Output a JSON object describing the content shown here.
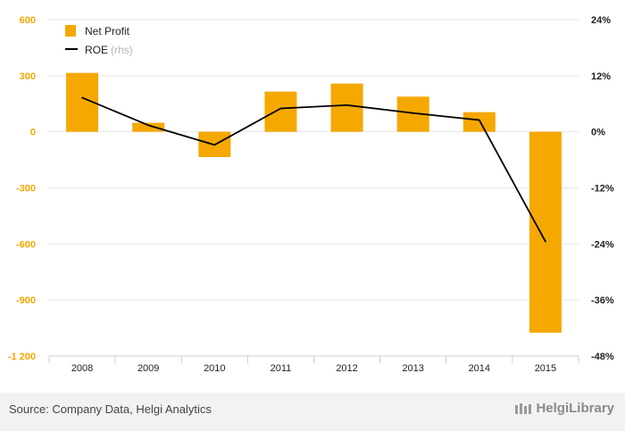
{
  "chart_data": {
    "type": "bar",
    "categories": [
      "2008",
      "2009",
      "2010",
      "2011",
      "2012",
      "2013",
      "2014",
      "2015"
    ],
    "series": [
      {
        "name": "Net Profit",
        "type": "bar",
        "axis": "left",
        "color": "#f5a800",
        "values": [
          315,
          48,
          -135,
          215,
          258,
          188,
          105,
          -1075
        ]
      },
      {
        "name": "ROE",
        "name_suffix": "(rhs)",
        "type": "line",
        "axis": "right",
        "color": "#000000",
        "values": [
          7.3,
          1.4,
          -2.8,
          5.0,
          5.7,
          4.0,
          2.5,
          -23.5
        ]
      }
    ],
    "left_axis": {
      "ylim": [
        -1200,
        600
      ],
      "ticks": [
        "600",
        "300",
        "0",
        "-300",
        "-600",
        "-900",
        "-1 200"
      ],
      "tick_values": [
        600,
        300,
        0,
        -300,
        -600,
        -900,
        -1200
      ]
    },
    "right_axis": {
      "ylim": [
        -48,
        24
      ],
      "ticks": [
        "24%",
        "12%",
        "0%",
        "-12%",
        "-24%",
        "-36%",
        "-48%"
      ],
      "tick_values": [
        24,
        12,
        0,
        -12,
        -24,
        -36,
        -48
      ]
    },
    "grid": true,
    "legend_position": "top-left"
  },
  "footer": {
    "source": "Source: Company Data, Helgi Analytics",
    "brand": "HelgiLibrary"
  },
  "colors": {
    "bar": "#f5a800",
    "line": "#000000",
    "left_tick": "#f5a800",
    "grid": "#e6e6e6",
    "footer_bg": "#f2f2f2"
  }
}
